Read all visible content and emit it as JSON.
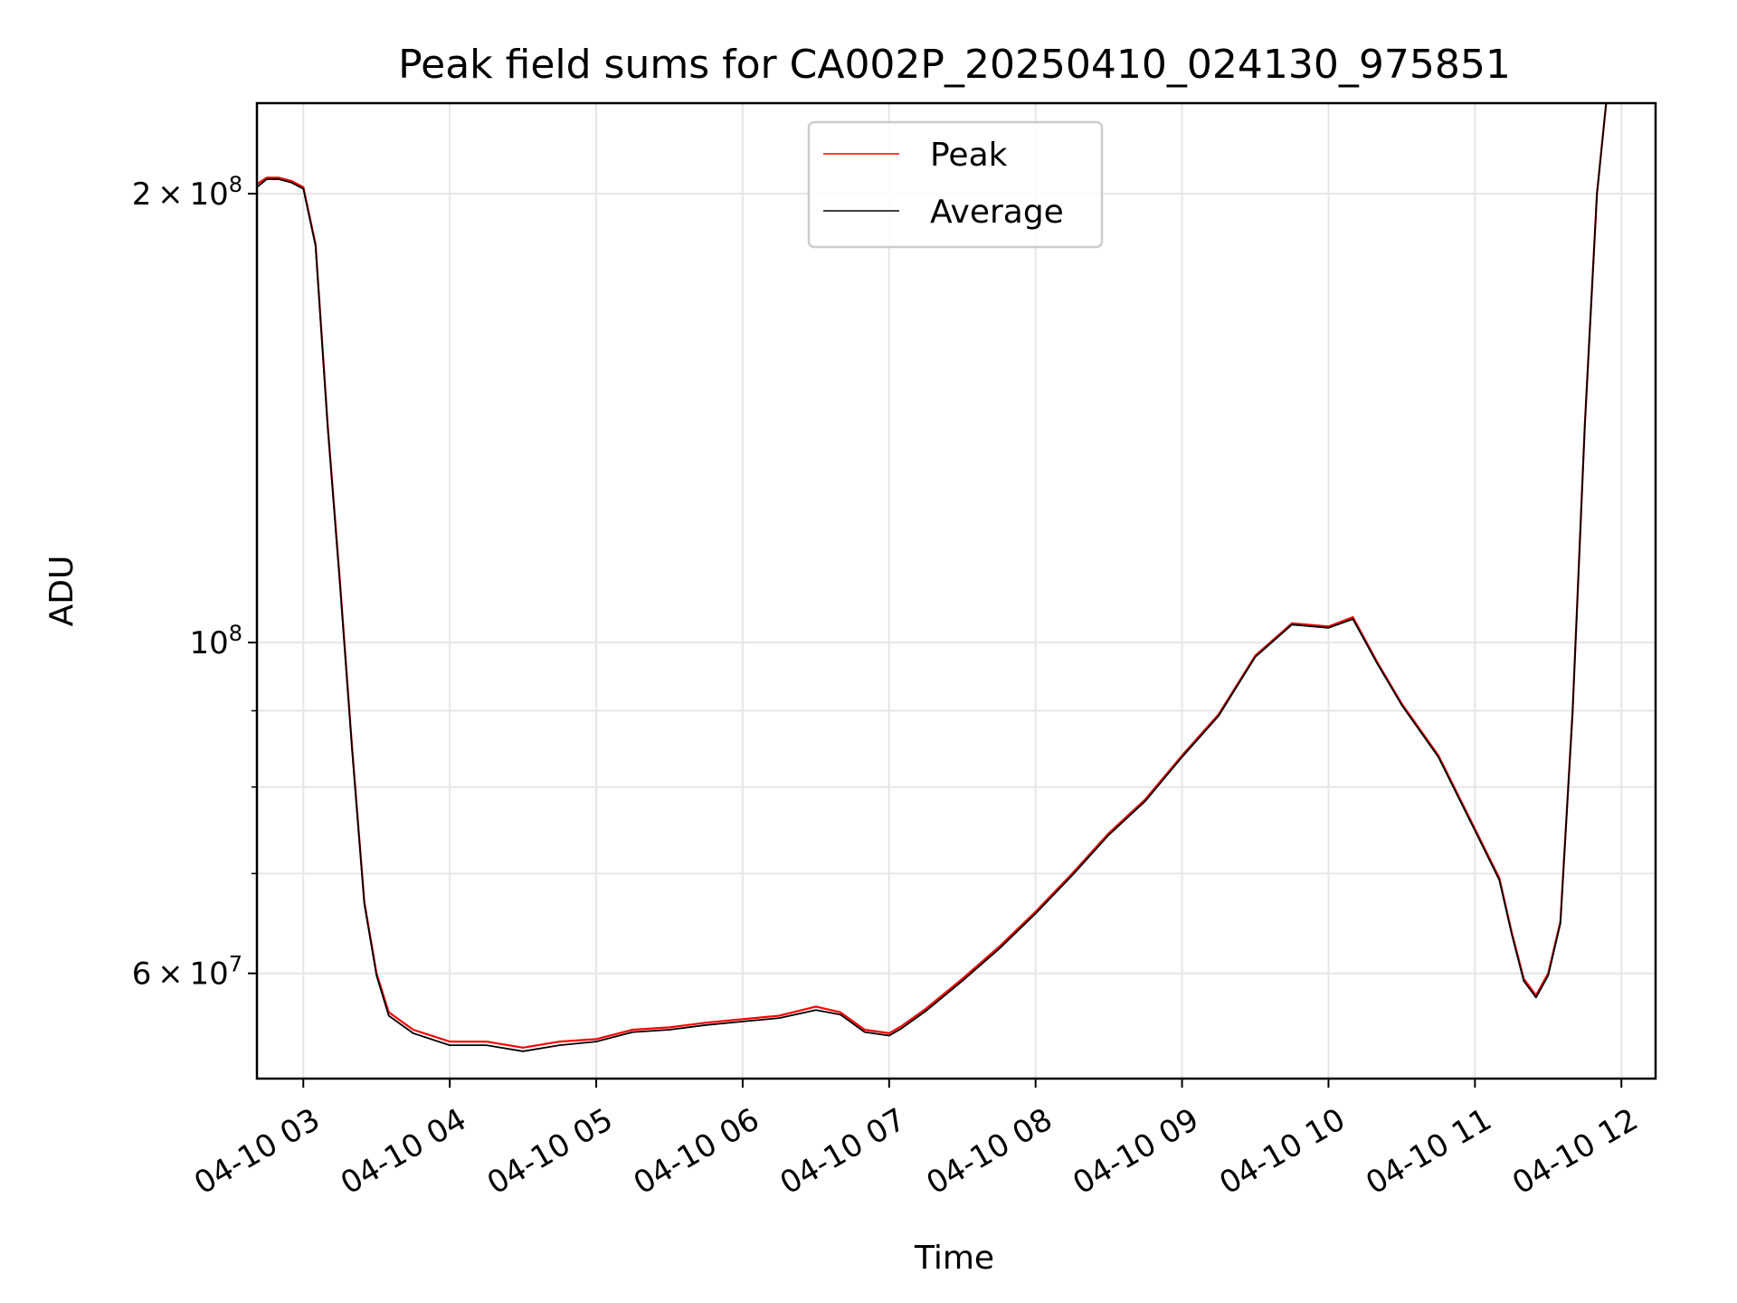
{
  "chart_data": {
    "type": "line",
    "title": "Peak field sums for CA002P_20250410_024130_975851",
    "xlabel": "Time",
    "ylabel": "ADU",
    "yscale": "log",
    "grid": true,
    "legend_position": "top-center",
    "xlim": [
      "04-10 02:41",
      "04-10 12:14"
    ],
    "ylim": [
      51000000,
      230000000
    ],
    "x_ticks": [
      "04-10 03",
      "04-10 04",
      "04-10 05",
      "04-10 06",
      "04-10 07",
      "04-10 08",
      "04-10 09",
      "04-10 10",
      "04-10 11",
      "04-10 12"
    ],
    "y_ticks": [
      {
        "value": 200000000,
        "mantissa": "2",
        "exp": "8"
      },
      {
        "value": 100000000,
        "mantissa": "",
        "exp": "8"
      },
      {
        "value": 60000000,
        "mantissa": "6",
        "exp": "7"
      }
    ],
    "y_minor_ticks": [
      70000000,
      80000000,
      90000000
    ],
    "series": [
      {
        "name": "Peak",
        "color": "#ff0000",
        "x": [
          "04-10 02:41",
          "04-10 02:45",
          "04-10 02:50",
          "04-10 02:55",
          "04-10 03:00",
          "04-10 03:05",
          "04-10 03:10",
          "04-10 03:15",
          "04-10 03:20",
          "04-10 03:25",
          "04-10 03:30",
          "04-10 03:35",
          "04-10 03:45",
          "04-10 04:00",
          "04-10 04:15",
          "04-10 04:30",
          "04-10 04:45",
          "04-10 05:00",
          "04-10 05:15",
          "04-10 05:30",
          "04-10 05:45",
          "04-10 06:00",
          "04-10 06:15",
          "04-10 06:30",
          "04-10 06:40",
          "04-10 06:50",
          "04-10 07:00",
          "04-10 07:05",
          "04-10 07:15",
          "04-10 07:30",
          "04-10 07:45",
          "04-10 08:00",
          "04-10 08:15",
          "04-10 08:30",
          "04-10 08:45",
          "04-10 09:00",
          "04-10 09:15",
          "04-10 09:30",
          "04-10 09:45",
          "04-10 10:00",
          "04-10 10:10",
          "04-10 10:20",
          "04-10 10:30",
          "04-10 10:45",
          "04-10 11:00",
          "04-10 11:10",
          "04-10 11:15",
          "04-10 11:20",
          "04-10 11:25",
          "04-10 11:30",
          "04-10 11:35",
          "04-10 11:40",
          "04-10 11:45",
          "04-10 11:50",
          "04-10 11:54"
        ],
        "values": [
          203000000,
          205000000,
          205000000,
          204000000,
          202000000,
          185000000,
          140000000,
          110000000,
          85000000,
          67000000,
          60000000,
          56500000,
          55000000,
          54000000,
          54000000,
          53500000,
          54000000,
          54200000,
          55000000,
          55200000,
          55600000,
          55900000,
          56200000,
          57000000,
          56500000,
          55000000,
          54700000,
          55300000,
          56800000,
          59500000,
          62500000,
          66000000,
          70000000,
          74500000,
          78500000,
          84000000,
          89500000,
          98000000,
          103000000,
          102500000,
          104000000,
          97000000,
          91000000,
          84000000,
          75000000,
          69500000,
          64000000,
          59500000,
          58000000,
          60000000,
          65000000,
          90000000,
          140000000,
          200000000,
          232000000
        ]
      },
      {
        "name": "Average",
        "color": "#000000",
        "x": [
          "04-10 02:41",
          "04-10 02:45",
          "04-10 02:50",
          "04-10 02:55",
          "04-10 03:00",
          "04-10 03:05",
          "04-10 03:10",
          "04-10 03:15",
          "04-10 03:20",
          "04-10 03:25",
          "04-10 03:30",
          "04-10 03:35",
          "04-10 03:45",
          "04-10 04:00",
          "04-10 04:15",
          "04-10 04:30",
          "04-10 04:45",
          "04-10 05:00",
          "04-10 05:15",
          "04-10 05:30",
          "04-10 05:45",
          "04-10 06:00",
          "04-10 06:15",
          "04-10 06:30",
          "04-10 06:40",
          "04-10 06:50",
          "04-10 07:00",
          "04-10 07:05",
          "04-10 07:15",
          "04-10 07:30",
          "04-10 07:45",
          "04-10 08:00",
          "04-10 08:15",
          "04-10 08:30",
          "04-10 08:45",
          "04-10 09:00",
          "04-10 09:15",
          "04-10 09:30",
          "04-10 09:45",
          "04-10 10:00",
          "04-10 10:10",
          "04-10 10:20",
          "04-10 10:30",
          "04-10 10:45",
          "04-10 11:00",
          "04-10 11:10",
          "04-10 11:15",
          "04-10 11:20",
          "04-10 11:25",
          "04-10 11:30",
          "04-10 11:35",
          "04-10 11:40",
          "04-10 11:45",
          "04-10 11:50",
          "04-10 11:54"
        ],
        "values": [
          202000000,
          204500000,
          204500000,
          203500000,
          201500000,
          184500000,
          139500000,
          109500000,
          84700000,
          66800000,
          59800000,
          56200000,
          54700000,
          53700000,
          53700000,
          53200000,
          53700000,
          54000000,
          54800000,
          55000000,
          55400000,
          55700000,
          56000000,
          56700000,
          56300000,
          54800000,
          54500000,
          55100000,
          56600000,
          59300000,
          62300000,
          65800000,
          69800000,
          74300000,
          78300000,
          83800000,
          89300000,
          97800000,
          102800000,
          102300000,
          103700000,
          96800000,
          90800000,
          83800000,
          74800000,
          69300000,
          63800000,
          59300000,
          57800000,
          59800000,
          64800000,
          89800000,
          139800000,
          199800000,
          232000000
        ]
      }
    ]
  }
}
